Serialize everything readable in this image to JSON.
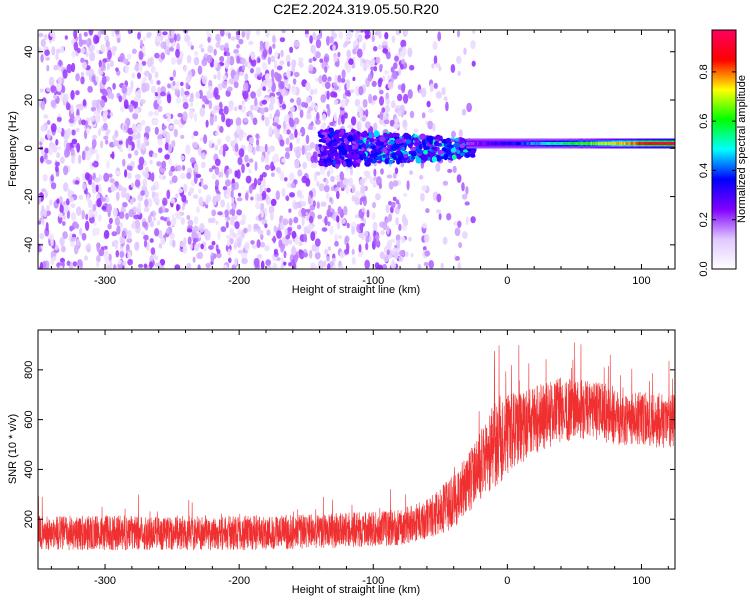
{
  "title": "C2E2.2024.319.05.50.R20",
  "colors": {
    "snr_line": "#f03030",
    "frame": "#000000"
  },
  "chart_data": [
    {
      "type": "heatmap",
      "xlabel": "Height of straight line (km)",
      "ylabel": "Frequency (Hz)",
      "xlim": [
        -350,
        125
      ],
      "ylim": [
        -50,
        49
      ],
      "x_ticks": [
        -300,
        -200,
        -100,
        0,
        100
      ],
      "y_ticks": [
        -40,
        -20,
        0,
        20,
        40
      ],
      "x_tick_labels": [
        "-300",
        "-200",
        "-100",
        "0",
        "100"
      ],
      "y_tick_labels": [
        "-40",
        "-20",
        "0",
        "20",
        "40"
      ],
      "colorbar": {
        "label": "Normalized spectral amplitude",
        "range": [
          0,
          0.97
        ],
        "ticks": [
          0.0,
          0.2,
          0.4,
          0.6,
          0.8
        ],
        "tick_labels": [
          "0.0",
          "0.2",
          "0.4",
          "0.6",
          "0.8"
        ],
        "colormap": [
          "#ffffff",
          "#e0c8ff",
          "#8000ff",
          "#0000ff",
          "#00ffff",
          "#00ff00",
          "#ffff00",
          "#ff0000",
          "#ff0060"
        ]
      },
      "features": {
        "noise_region_x": [
          -350,
          -30
        ],
        "noise_amplitude_range": [
          0.05,
          0.22
        ],
        "signal_line": {
          "x_start": -140,
          "x_end": 125,
          "frequency": 2,
          "amplitude_at_end": 0.95
        },
        "dense_noise_cutoff_x": -75,
        "sparse_noise_cutoff_x": -25
      }
    },
    {
      "type": "line",
      "xlabel": "Height of straight line (km)",
      "ylabel": "SNR (10 * v/v)",
      "xlim": [
        -350,
        125
      ],
      "ylim": [
        0,
        960
      ],
      "x_ticks": [
        -300,
        -200,
        -100,
        0,
        100
      ],
      "y_ticks": [
        200,
        400,
        600,
        800
      ],
      "x_tick_labels": [
        "-300",
        "-200",
        "-100",
        "0",
        "100"
      ],
      "y_tick_labels": [
        "200",
        "400",
        "600",
        "800"
      ],
      "series": [
        {
          "x": [
            -350,
            -300,
            -250,
            -200,
            -150,
            -100,
            -80,
            -60,
            -40,
            -25,
            -15,
            -10,
            -5,
            0,
            10,
            20,
            40,
            60,
            80,
            100,
            125
          ],
          "values": [
            145,
            145,
            145,
            145,
            150,
            160,
            170,
            200,
            270,
            380,
            450,
            500,
            520,
            540,
            570,
            600,
            640,
            640,
            620,
            600,
            590
          ],
          "spread": [
            70,
            70,
            70,
            70,
            70,
            70,
            75,
            80,
            110,
            130,
            150,
            170,
            180,
            160,
            150,
            140,
            130,
            120,
            120,
            110,
            110
          ]
        }
      ]
    }
  ]
}
